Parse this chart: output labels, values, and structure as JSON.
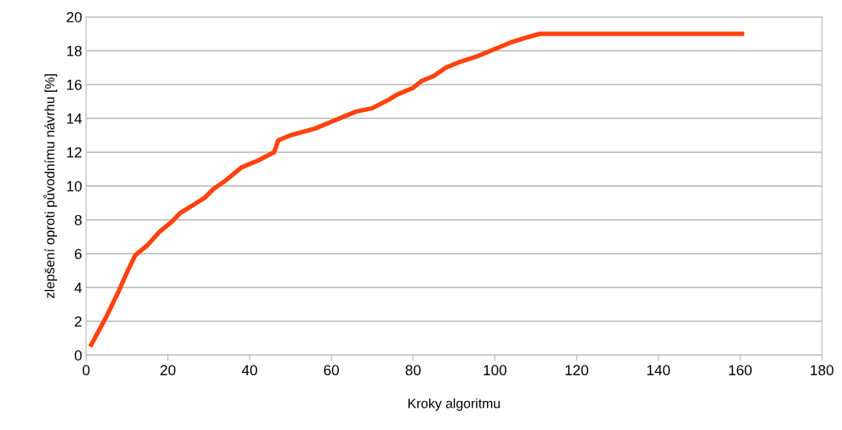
{
  "chart_data": {
    "type": "line",
    "xlabel": "Kroky algoritmu",
    "ylabel": "zlepšení oproti původnímu návrhu [%]",
    "series": [
      {
        "color": "#ff420e",
        "x": [
          1,
          3,
          5,
          8,
          10,
          12,
          15,
          18,
          21,
          23,
          27,
          29,
          31,
          34,
          36,
          38,
          42,
          46,
          47,
          50,
          56,
          60,
          63,
          66,
          70,
          74,
          76,
          80,
          82,
          85,
          88,
          91,
          96,
          101,
          104,
          108,
          111,
          161
        ],
        "values": [
          0.5,
          1.4,
          2.3,
          3.8,
          4.9,
          5.9,
          6.5,
          7.3,
          7.9,
          8.4,
          9.0,
          9.3,
          9.8,
          10.3,
          10.7,
          11.1,
          11.5,
          12.0,
          12.7,
          13.0,
          13.4,
          13.8,
          14.1,
          14.4,
          14.6,
          15.1,
          15.4,
          15.8,
          16.2,
          16.5,
          17.0,
          17.3,
          17.7,
          18.2,
          18.5,
          18.8,
          19.0,
          19.0
        ]
      }
    ],
    "xlim": [
      0,
      180
    ],
    "xticks": [
      0,
      20,
      40,
      60,
      80,
      100,
      120,
      140,
      160,
      180
    ],
    "ylim": [
      0,
      20
    ],
    "yticks": [
      0,
      2,
      4,
      6,
      8,
      10,
      12,
      14,
      16,
      18,
      20
    ],
    "grid": "y",
    "marker": "none",
    "line_style": "solid"
  }
}
